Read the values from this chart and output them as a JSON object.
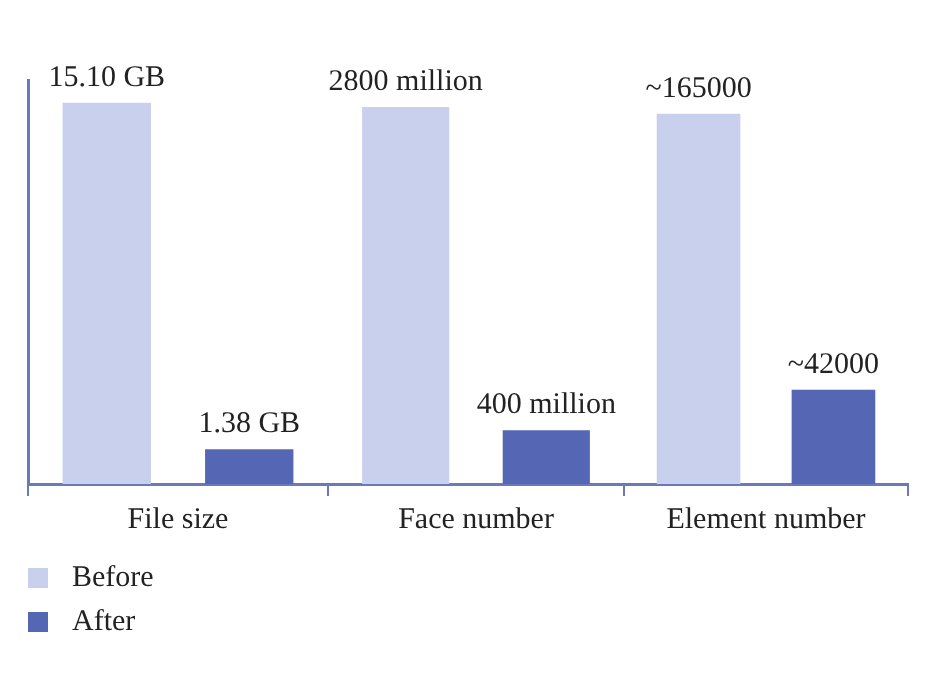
{
  "chart_data": [
    {
      "type": "bar",
      "categories": [
        "File size"
      ],
      "tick_labels": "x",
      "legend": "bottom left",
      "series": [
        {
          "name": "Before",
          "color": "#c9d0ee",
          "values": [
            15.1
          ],
          "value_labels": [
            "15.10 GB"
          ]
        },
        {
          "name": "After",
          "color": "#5566b5",
          "values": [
            1.38
          ],
          "value_labels": [
            "1.38 GB"
          ]
        }
      ]
    },
    {
      "type": "bar",
      "categories": [
        "Face number"
      ],
      "tick_labels": "x",
      "series": [
        {
          "color": "#c9d0ee",
          "values": [
            2800
          ],
          "value_labels": [
            "2800 million"
          ]
        },
        {
          "color": "#5566b5",
          "values": [
            400
          ],
          "value_labels": [
            "400 million"
          ]
        }
      ]
    },
    {
      "type": "bar",
      "categories": [
        "Element number"
      ],
      "tick_labels": "x",
      "series": [
        {
          "color": "#c9d0ee",
          "values": [
            165000
          ],
          "value_labels": [
            "~165000"
          ]
        },
        {
          "color": "#5566b5",
          "values": [
            42000
          ],
          "value_labels": [
            "~42000"
          ]
        }
      ]
    }
  ]
}
